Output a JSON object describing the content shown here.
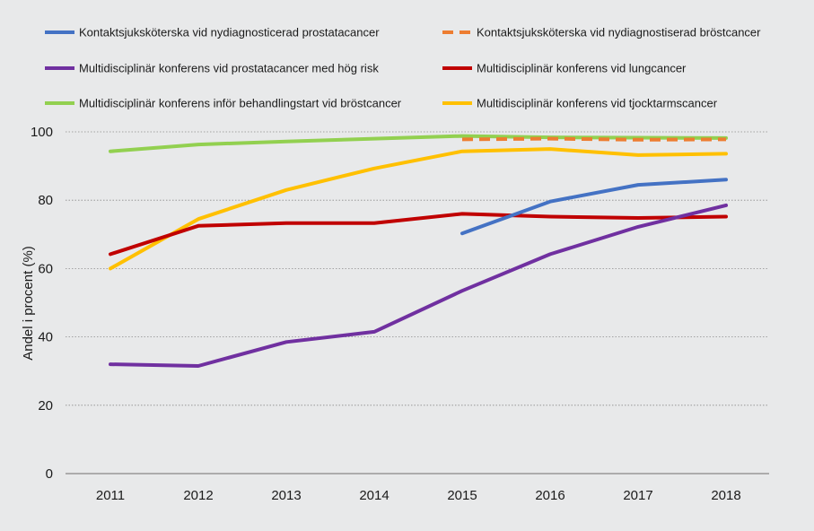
{
  "chart_data": {
    "type": "line",
    "title": "",
    "xlabel": "",
    "ylabel": "Andel i procent (%)",
    "ylim": [
      0,
      100
    ],
    "yticks": [
      0,
      20,
      40,
      60,
      80,
      100
    ],
    "categories": [
      "2011",
      "2012",
      "2013",
      "2014",
      "2015",
      "2016",
      "2017",
      "2018"
    ],
    "grid": "horizontal-dotted",
    "legend_position": "top",
    "series": [
      {
        "name": "Kontaktsjuksköterska vid nydiagnosticerad prostatacancer",
        "color": "#4472c4",
        "dashed": false,
        "values": [
          null,
          null,
          null,
          null,
          70.3,
          79.6,
          84.5,
          86.0
        ]
      },
      {
        "name": "Kontaktsjuksköterska vid nydiagnostiserad bröstcancer",
        "color": "#ed7d31",
        "dashed": true,
        "values": [
          null,
          null,
          null,
          null,
          97.8,
          98.0,
          97.7,
          97.8
        ]
      },
      {
        "name": "Multidisciplinär konferens vid prostatacancer med hög risk",
        "color": "#7030a0",
        "dashed": false,
        "values": [
          32.0,
          31.5,
          38.5,
          41.5,
          53.5,
          64.2,
          72.2,
          78.5
        ]
      },
      {
        "name": "Multidisciplinär konferens vid lungcancer",
        "color": "#c00000",
        "dashed": false,
        "values": [
          64.2,
          72.5,
          73.3,
          73.3,
          76.0,
          75.2,
          74.8,
          75.2
        ]
      },
      {
        "name": "Multidisciplinär konferens inför behandlingstart vid bröstcancer",
        "color": "#92d050",
        "dashed": false,
        "values": [
          94.3,
          96.3,
          97.2,
          98.0,
          98.8,
          98.4,
          98.3,
          98.2
        ]
      },
      {
        "name": "Multidisciplinär konferens vid tjocktarmscancer",
        "color": "#ffc000",
        "dashed": false,
        "values": [
          60.0,
          74.5,
          83.0,
          89.3,
          94.3,
          95.0,
          93.2,
          93.6
        ]
      }
    ]
  }
}
